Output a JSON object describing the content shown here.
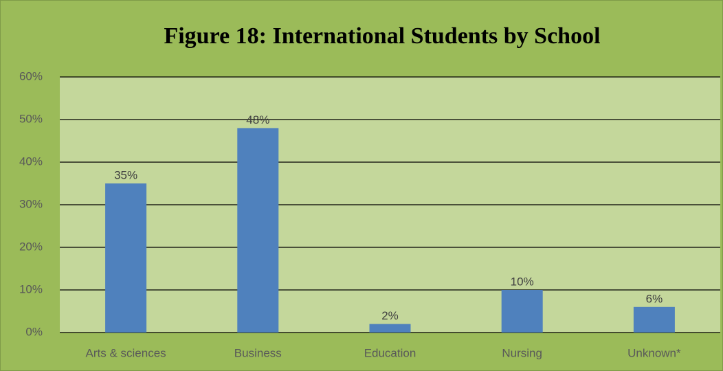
{
  "chart_data": {
    "type": "bar",
    "title": "Figure 18: International Students by School",
    "categories": [
      "Arts & sciences",
      "Business",
      "Education",
      "Nursing",
      "Unknown*"
    ],
    "values": [
      35,
      48,
      2,
      10,
      6
    ],
    "value_labels": [
      "35%",
      "48%",
      "2%",
      "10%",
      "6%"
    ],
    "color": "#4f81bd",
    "ylim": [
      0,
      60
    ],
    "yticks": [
      {
        "value": 0,
        "label": "0%"
      },
      {
        "value": 10,
        "label": "10%"
      },
      {
        "value": 20,
        "label": "20%"
      },
      {
        "value": 30,
        "label": "30%"
      },
      {
        "value": 40,
        "label": "40%"
      },
      {
        "value": 50,
        "label": "50%"
      },
      {
        "value": 60,
        "label": "60%"
      }
    ],
    "grid": true
  }
}
